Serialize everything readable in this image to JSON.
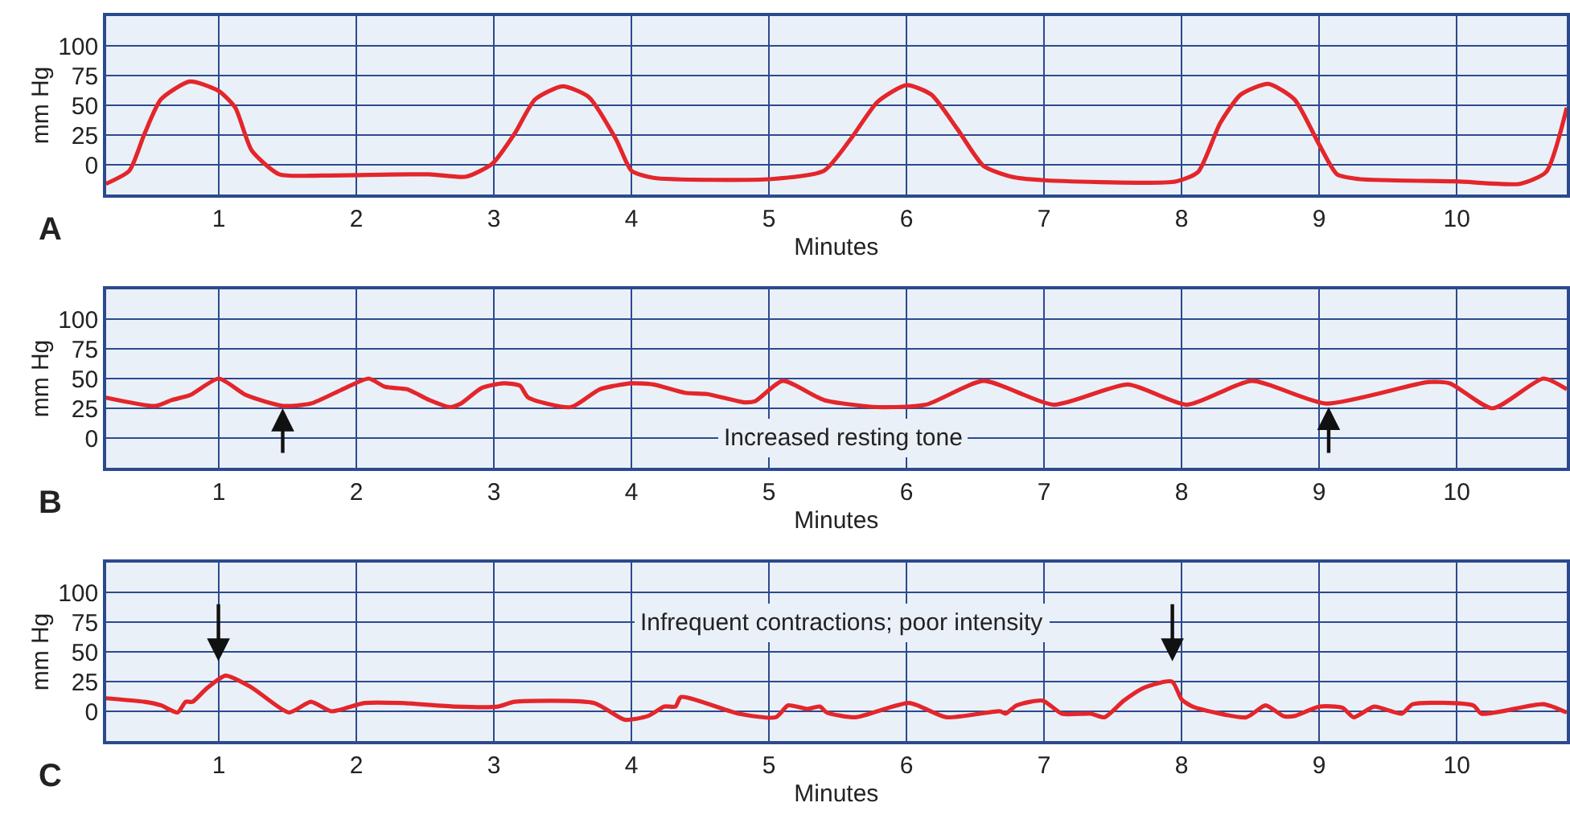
{
  "chart_data": [
    {
      "type": "line",
      "xlabel": "Minutes",
      "ylabel": "mm Hg",
      "annotations": [
        "A"
      ],
      "xlim": [
        0.18,
        10.8
      ],
      "ylim": [
        -25,
        125
      ],
      "xticks": [
        1,
        2,
        3,
        4,
        5,
        6,
        7,
        8,
        9,
        10
      ],
      "yticks": [
        0,
        25,
        50,
        75,
        100
      ],
      "grid": true,
      "series": [
        {
          "color": "#e3262b",
          "x": [
            0.18,
            0.35,
            0.46,
            0.58,
            0.79,
            1.0,
            1.12,
            1.24,
            1.44,
            1.75,
            2.53,
            2.8,
            2.99,
            3.15,
            3.3,
            3.5,
            3.69,
            3.89,
            4.0,
            4.16,
            5.02,
            5.4,
            5.59,
            5.79,
            6.0,
            6.18,
            6.37,
            6.56,
            6.76,
            7.0,
            7.96,
            8.12,
            8.28,
            8.43,
            8.63,
            8.82,
            9.0,
            9.13,
            9.29,
            10.0,
            10.46,
            10.65,
            10.8
          ],
          "values": [
            -16,
            -5,
            26,
            55,
            70,
            62,
            48,
            12,
            -8,
            -9,
            -8,
            -10,
            1,
            26,
            55,
            66,
            57,
            21,
            -5,
            -11,
            -12,
            -5,
            21,
            53,
            67,
            59,
            30,
            -1,
            -10,
            -13,
            -14,
            -6,
            35,
            59,
            68,
            55,
            17,
            -8,
            -12,
            -14,
            -16,
            -6,
            48
          ]
        }
      ]
    },
    {
      "type": "line",
      "xlabel": "Minutes",
      "ylabel": "mm Hg",
      "annotations": [
        "B",
        "Increased resting tone"
      ],
      "xlim": [
        0.18,
        10.8
      ],
      "ylim": [
        -25,
        125
      ],
      "xticks": [
        1,
        2,
        3,
        4,
        5,
        6,
        7,
        8,
        9,
        10
      ],
      "yticks": [
        0,
        25,
        50,
        75,
        100
      ],
      "grid": true,
      "series": [
        {
          "color": "#e3262b",
          "x": [
            0.18,
            0.54,
            0.66,
            0.79,
            1.0,
            1.2,
            1.47,
            1.67,
            1.9,
            2.09,
            2.21,
            2.37,
            2.53,
            2.68,
            2.76,
            2.91,
            3.07,
            3.19,
            3.25,
            3.56,
            3.77,
            4.0,
            4.16,
            4.39,
            4.55,
            4.82,
            4.9,
            5.1,
            5.4,
            5.79,
            6.14,
            6.56,
            7.07,
            7.61,
            8.04,
            8.51,
            9.05,
            9.79,
            9.95,
            10.26,
            10.63,
            10.8
          ],
          "values": [
            34,
            27,
            32,
            36,
            50,
            36,
            27,
            29,
            41,
            50,
            43,
            41,
            32,
            26,
            29,
            42,
            46,
            44,
            34,
            26,
            41,
            46,
            45,
            38,
            37,
            30,
            31,
            48,
            32,
            26,
            28,
            48,
            28,
            45,
            28,
            48,
            29,
            47,
            46,
            25,
            50,
            41
          ]
        }
      ]
    },
    {
      "type": "line",
      "xlabel": "Minutes",
      "ylabel": "mm Hg",
      "annotations": [
        "C",
        "Infrequent contractions; poor intensity"
      ],
      "xlim": [
        0.18,
        10.8
      ],
      "ylim": [
        -25,
        125
      ],
      "xticks": [
        1,
        2,
        3,
        4,
        5,
        6,
        7,
        8,
        9,
        10
      ],
      "yticks": [
        0,
        25,
        50,
        75,
        100
      ],
      "grid": true,
      "series": [
        {
          "color": "#e3262b",
          "x": [
            0.18,
            0.46,
            0.58,
            0.7,
            0.76,
            0.81,
            0.91,
            1.05,
            1.24,
            1.51,
            1.67,
            1.82,
            2.06,
            2.33,
            2.72,
            3.03,
            3.15,
            3.73,
            3.95,
            4.12,
            4.24,
            4.32,
            4.36,
            4.78,
            5.05,
            5.14,
            5.28,
            5.37,
            5.42,
            5.63,
            6.02,
            6.29,
            6.68,
            6.72,
            6.8,
            6.99,
            7.13,
            7.34,
            7.44,
            7.58,
            7.73,
            7.93,
            8.0,
            8.08,
            8.47,
            8.61,
            8.74,
            8.82,
            9.0,
            9.17,
            9.25,
            9.4,
            9.6,
            9.68,
            10.12,
            10.18,
            10.63,
            10.8
          ],
          "values": [
            11,
            8,
            5,
            -1,
            8,
            8,
            19,
            30,
            20,
            -1,
            8,
            0,
            7,
            7,
            4,
            4,
            8,
            7,
            -7,
            -4,
            4,
            4,
            12,
            -2,
            -5,
            5,
            2,
            4,
            -1,
            -5,
            7,
            -5,
            0,
            -2,
            5,
            9,
            -2,
            -2,
            -5,
            9,
            20,
            25,
            10,
            4,
            -5,
            5,
            -4,
            -4,
            4,
            3,
            -5,
            4,
            -2,
            6,
            5,
            -2,
            6,
            -1
          ]
        }
      ]
    }
  ]
}
